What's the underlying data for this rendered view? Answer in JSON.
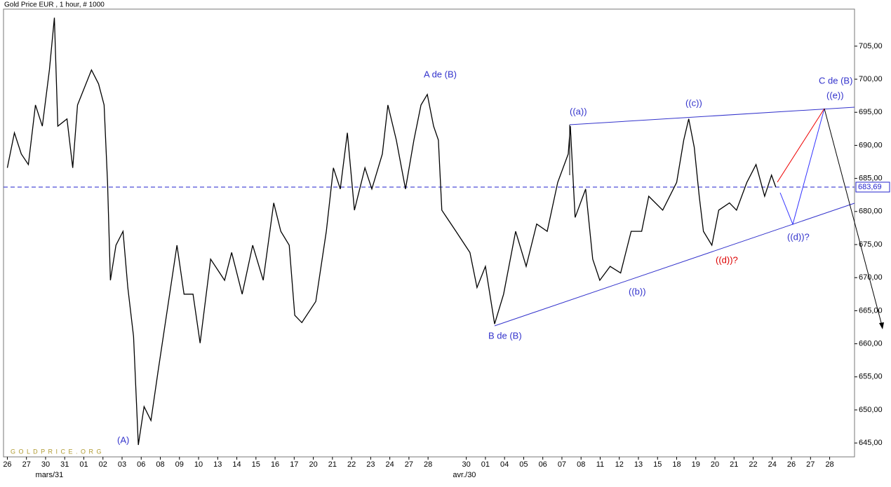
{
  "chart_data": {
    "type": "line",
    "title": "Gold Price EUR , 1 hour, # 1000",
    "watermark": "G O L D P R I C E . O R G",
    "color": "#000000",
    "x": [
      0,
      0.37,
      0.73,
      1.1,
      1.47,
      1.83,
      2.2,
      2.46,
      2.64,
      3.12,
      3.42,
      3.67,
      3.96,
      4.4,
      4.77,
      5.06,
      5.24,
      5.39,
      5.68,
      6.05,
      6.3,
      6.6,
      6.85,
      7.15,
      7.51,
      7.88,
      8.43,
      8.87,
      9.24,
      9.71,
      10.08,
      10.63,
      11.36,
      11.73,
      12.28,
      12.83,
      13.38,
      13.93,
      14.3,
      14.74,
      15.03,
      15.4,
      16.13,
      16.68,
      17.05,
      17.41,
      17.78,
      18.15,
      18.7,
      19.06,
      19.61,
      19.9,
      20.34,
      20.82,
      21.26,
      21.63,
      21.96,
      22.29,
      22.54,
      22.72,
      23.46,
      24.19,
      24.56,
      25,
      25.48,
      25.95,
      26.58,
      27.13,
      27.68,
      28.23,
      28.78,
      29.33,
      29.44,
      29.69,
      30.24,
      30.61,
      30.98,
      31.52,
      32.07,
      32.62,
      33.17,
      33.54,
      34.27,
      35,
      35.37,
      35.63,
      35.92,
      36.18,
      36.4,
      36.84,
      37.2,
      37.76,
      38.13,
      38.67,
      39.15,
      39.6,
      39.96,
      40.18
    ],
    "values": [
      686.6,
      691.9,
      688.7,
      687.1,
      696.1,
      692.9,
      701.4,
      709.3,
      692.9,
      694,
      686.6,
      696.1,
      698.2,
      701.4,
      699.3,
      696.1,
      684.4,
      669.6,
      674.9,
      677,
      668.5,
      661.1,
      644.7,
      650.5,
      648.4,
      655.8,
      666.4,
      674.9,
      667.5,
      667.5,
      660.1,
      672.8,
      669.6,
      673.8,
      667.5,
      674.9,
      669.6,
      681.3,
      677,
      674.9,
      664.3,
      663.2,
      666.4,
      677,
      686.6,
      683.4,
      691.9,
      680.2,
      686.6,
      683.4,
      688.7,
      696.1,
      690.8,
      683.4,
      690.8,
      696.1,
      697.7,
      692.9,
      690.8,
      680.2,
      677,
      673.8,
      668.5,
      671.7,
      663,
      667.5,
      677,
      671.7,
      678.1,
      677,
      684.4,
      688.7,
      692.9,
      679.1,
      683.4,
      672.8,
      669.6,
      671.7,
      670.7,
      677,
      677,
      682.3,
      680.2,
      684.4,
      690.8,
      694,
      689.7,
      682.3,
      677,
      674.9,
      680.2,
      681.3,
      680.2,
      684.4,
      687.1,
      682.3,
      685.5,
      683.7
    ],
    "xlim": [
      -0.2,
      44.3
    ],
    "xticks": [
      {
        "value": 0,
        "label": "26"
      },
      {
        "value": 1,
        "label": "27"
      },
      {
        "value": 2,
        "label": "30"
      },
      {
        "value": 3,
        "label": "31"
      },
      {
        "value": 4,
        "label": "01"
      },
      {
        "value": 5,
        "label": "02"
      },
      {
        "value": 6,
        "label": "03"
      },
      {
        "value": 7,
        "label": "06"
      },
      {
        "value": 8,
        "label": "08"
      },
      {
        "value": 9,
        "label": "09"
      },
      {
        "value": 10,
        "label": "10"
      },
      {
        "value": 11,
        "label": "13"
      },
      {
        "value": 12,
        "label": "14"
      },
      {
        "value": 13,
        "label": "15"
      },
      {
        "value": 14,
        "label": "16"
      },
      {
        "value": 15,
        "label": "17"
      },
      {
        "value": 16,
        "label": "20"
      },
      {
        "value": 17,
        "label": "21"
      },
      {
        "value": 18,
        "label": "22"
      },
      {
        "value": 19,
        "label": "23"
      },
      {
        "value": 20,
        "label": "24"
      },
      {
        "value": 21,
        "label": "27"
      },
      {
        "value": 22,
        "label": "28"
      },
      {
        "value": 24,
        "label": "30"
      },
      {
        "value": 25,
        "label": "01"
      },
      {
        "value": 26,
        "label": "04"
      },
      {
        "value": 27,
        "label": "05"
      },
      {
        "value": 28,
        "label": "06"
      },
      {
        "value": 29,
        "label": "07"
      },
      {
        "value": 30,
        "label": "08"
      },
      {
        "value": 31,
        "label": "11"
      },
      {
        "value": 32,
        "label": "12"
      },
      {
        "value": 33,
        "label": "13"
      },
      {
        "value": 34,
        "label": "15"
      },
      {
        "value": 35,
        "label": "18"
      },
      {
        "value": 36,
        "label": "19"
      },
      {
        "value": 37,
        "label": "20"
      },
      {
        "value": 38,
        "label": "21"
      },
      {
        "value": 39,
        "label": "22"
      },
      {
        "value": 40,
        "label": "24"
      },
      {
        "value": 41,
        "label": "26"
      },
      {
        "value": 42,
        "label": "27"
      },
      {
        "value": 43,
        "label": "28"
      }
    ],
    "x_sublabels": [
      {
        "value": 2.2,
        "label": "mars/31"
      },
      {
        "value": 23.9,
        "label": "avr./30"
      }
    ],
    "ylim": [
      642.9,
      710.6
    ],
    "yticks": [
      {
        "value": 645,
        "label": "645,00"
      },
      {
        "value": 650,
        "label": "650,00"
      },
      {
        "value": 655,
        "label": "655,00"
      },
      {
        "value": 660,
        "label": "660,00"
      },
      {
        "value": 665,
        "label": "665,00"
      },
      {
        "value": 670,
        "label": "670,00"
      },
      {
        "value": 675,
        "label": "675,00"
      },
      {
        "value": 680,
        "label": "680,00"
      },
      {
        "value": 685,
        "label": "685,00"
      },
      {
        "value": 690,
        "label": "690,00"
      },
      {
        "value": 695,
        "label": "695,00"
      },
      {
        "value": 700,
        "label": "700,00"
      },
      {
        "value": 705,
        "label": "705,00"
      }
    ],
    "reference_line": {
      "value": 683.69,
      "label": "683,69"
    },
    "annotations": [
      "(A)",
      "A de (B)",
      "B de (B)",
      "((a))",
      "((b))",
      "((c))",
      "((d))?",
      "((d))?",
      "((e))",
      "C de (B)"
    ]
  }
}
